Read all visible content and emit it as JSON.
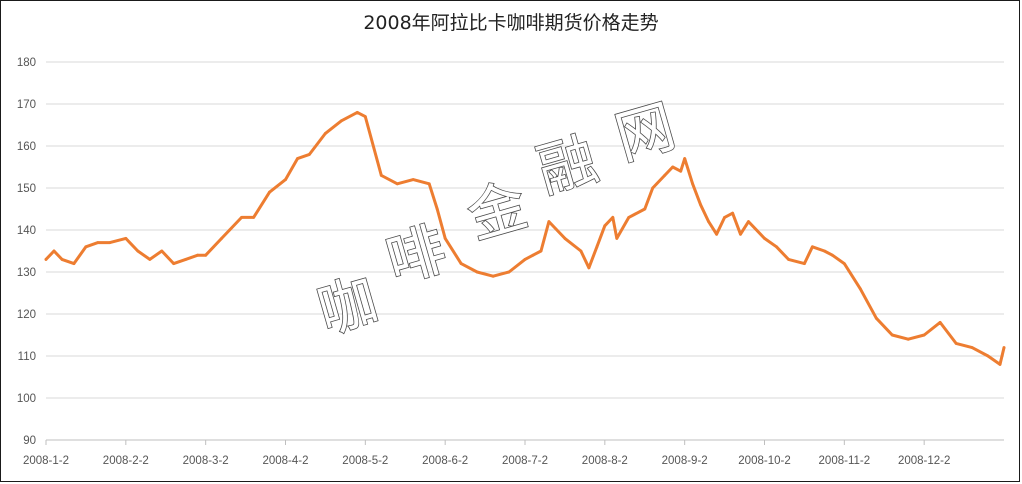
{
  "chart_data": {
    "type": "line",
    "title": "2008年阿拉比卡咖啡期货价格走势",
    "xlabel": "",
    "ylabel": "",
    "ylim": [
      90,
      180
    ],
    "yticks": [
      90,
      100,
      110,
      120,
      130,
      140,
      150,
      160,
      170,
      180
    ],
    "xticks": [
      "2008-1-2",
      "2008-2-2",
      "2008-3-2",
      "2008-4-2",
      "2008-5-2",
      "2008-6-2",
      "2008-7-2",
      "2008-8-2",
      "2008-9-2",
      "2008-10-2",
      "2008-11-2",
      "2008-12-2"
    ],
    "grid": true,
    "line_color": "#ED7D31",
    "series": [
      {
        "name": "阿拉比卡咖啡期货价格",
        "x_index": [
          0,
          0.1,
          0.2,
          0.35,
          0.5,
          0.65,
          0.8,
          1,
          1.15,
          1.3,
          1.45,
          1.6,
          1.75,
          1.9,
          2,
          2.2,
          2.3,
          2.45,
          2.6,
          2.8,
          3,
          3.15,
          3.3,
          3.5,
          3.7,
          3.9,
          4,
          4.2,
          4.4,
          4.6,
          4.8,
          4.9,
          5,
          5.2,
          5.4,
          5.6,
          5.8,
          6,
          6.1,
          6.2,
          6.3,
          6.5,
          6.7,
          6.8,
          6.9,
          7,
          7.1,
          7.15,
          7.3,
          7.5,
          7.6,
          7.75,
          7.85,
          7.95,
          8,
          8.1,
          8.2,
          8.3,
          8.4,
          8.5,
          8.6,
          8.7,
          8.8,
          9,
          9.15,
          9.3,
          9.5,
          9.6,
          9.75,
          9.85,
          10,
          10.2,
          10.4,
          10.6,
          10.8,
          11,
          11.2,
          11.4,
          11.6,
          11.8,
          11.95,
          12
        ],
        "values": [
          133,
          135,
          133,
          132,
          136,
          137,
          137,
          138,
          135,
          133,
          135,
          132,
          133,
          134,
          134,
          138,
          140,
          143,
          143,
          149,
          152,
          157,
          158,
          163,
          166,
          168,
          167,
          153,
          151,
          152,
          151,
          145,
          138,
          132,
          130,
          129,
          130,
          133,
          134,
          135,
          142,
          138,
          135,
          131,
          136,
          141,
          143,
          138,
          143,
          145,
          150,
          153,
          155,
          154,
          157,
          151,
          146,
          142,
          139,
          143,
          144,
          139,
          142,
          138,
          136,
          133,
          132,
          136,
          135,
          134,
          132,
          126,
          119,
          115,
          114,
          115,
          118,
          113,
          112,
          110,
          108,
          112
        ]
      }
    ]
  },
  "watermark": {
    "chars": [
      "咖",
      "啡",
      "金",
      "融",
      "网"
    ]
  }
}
